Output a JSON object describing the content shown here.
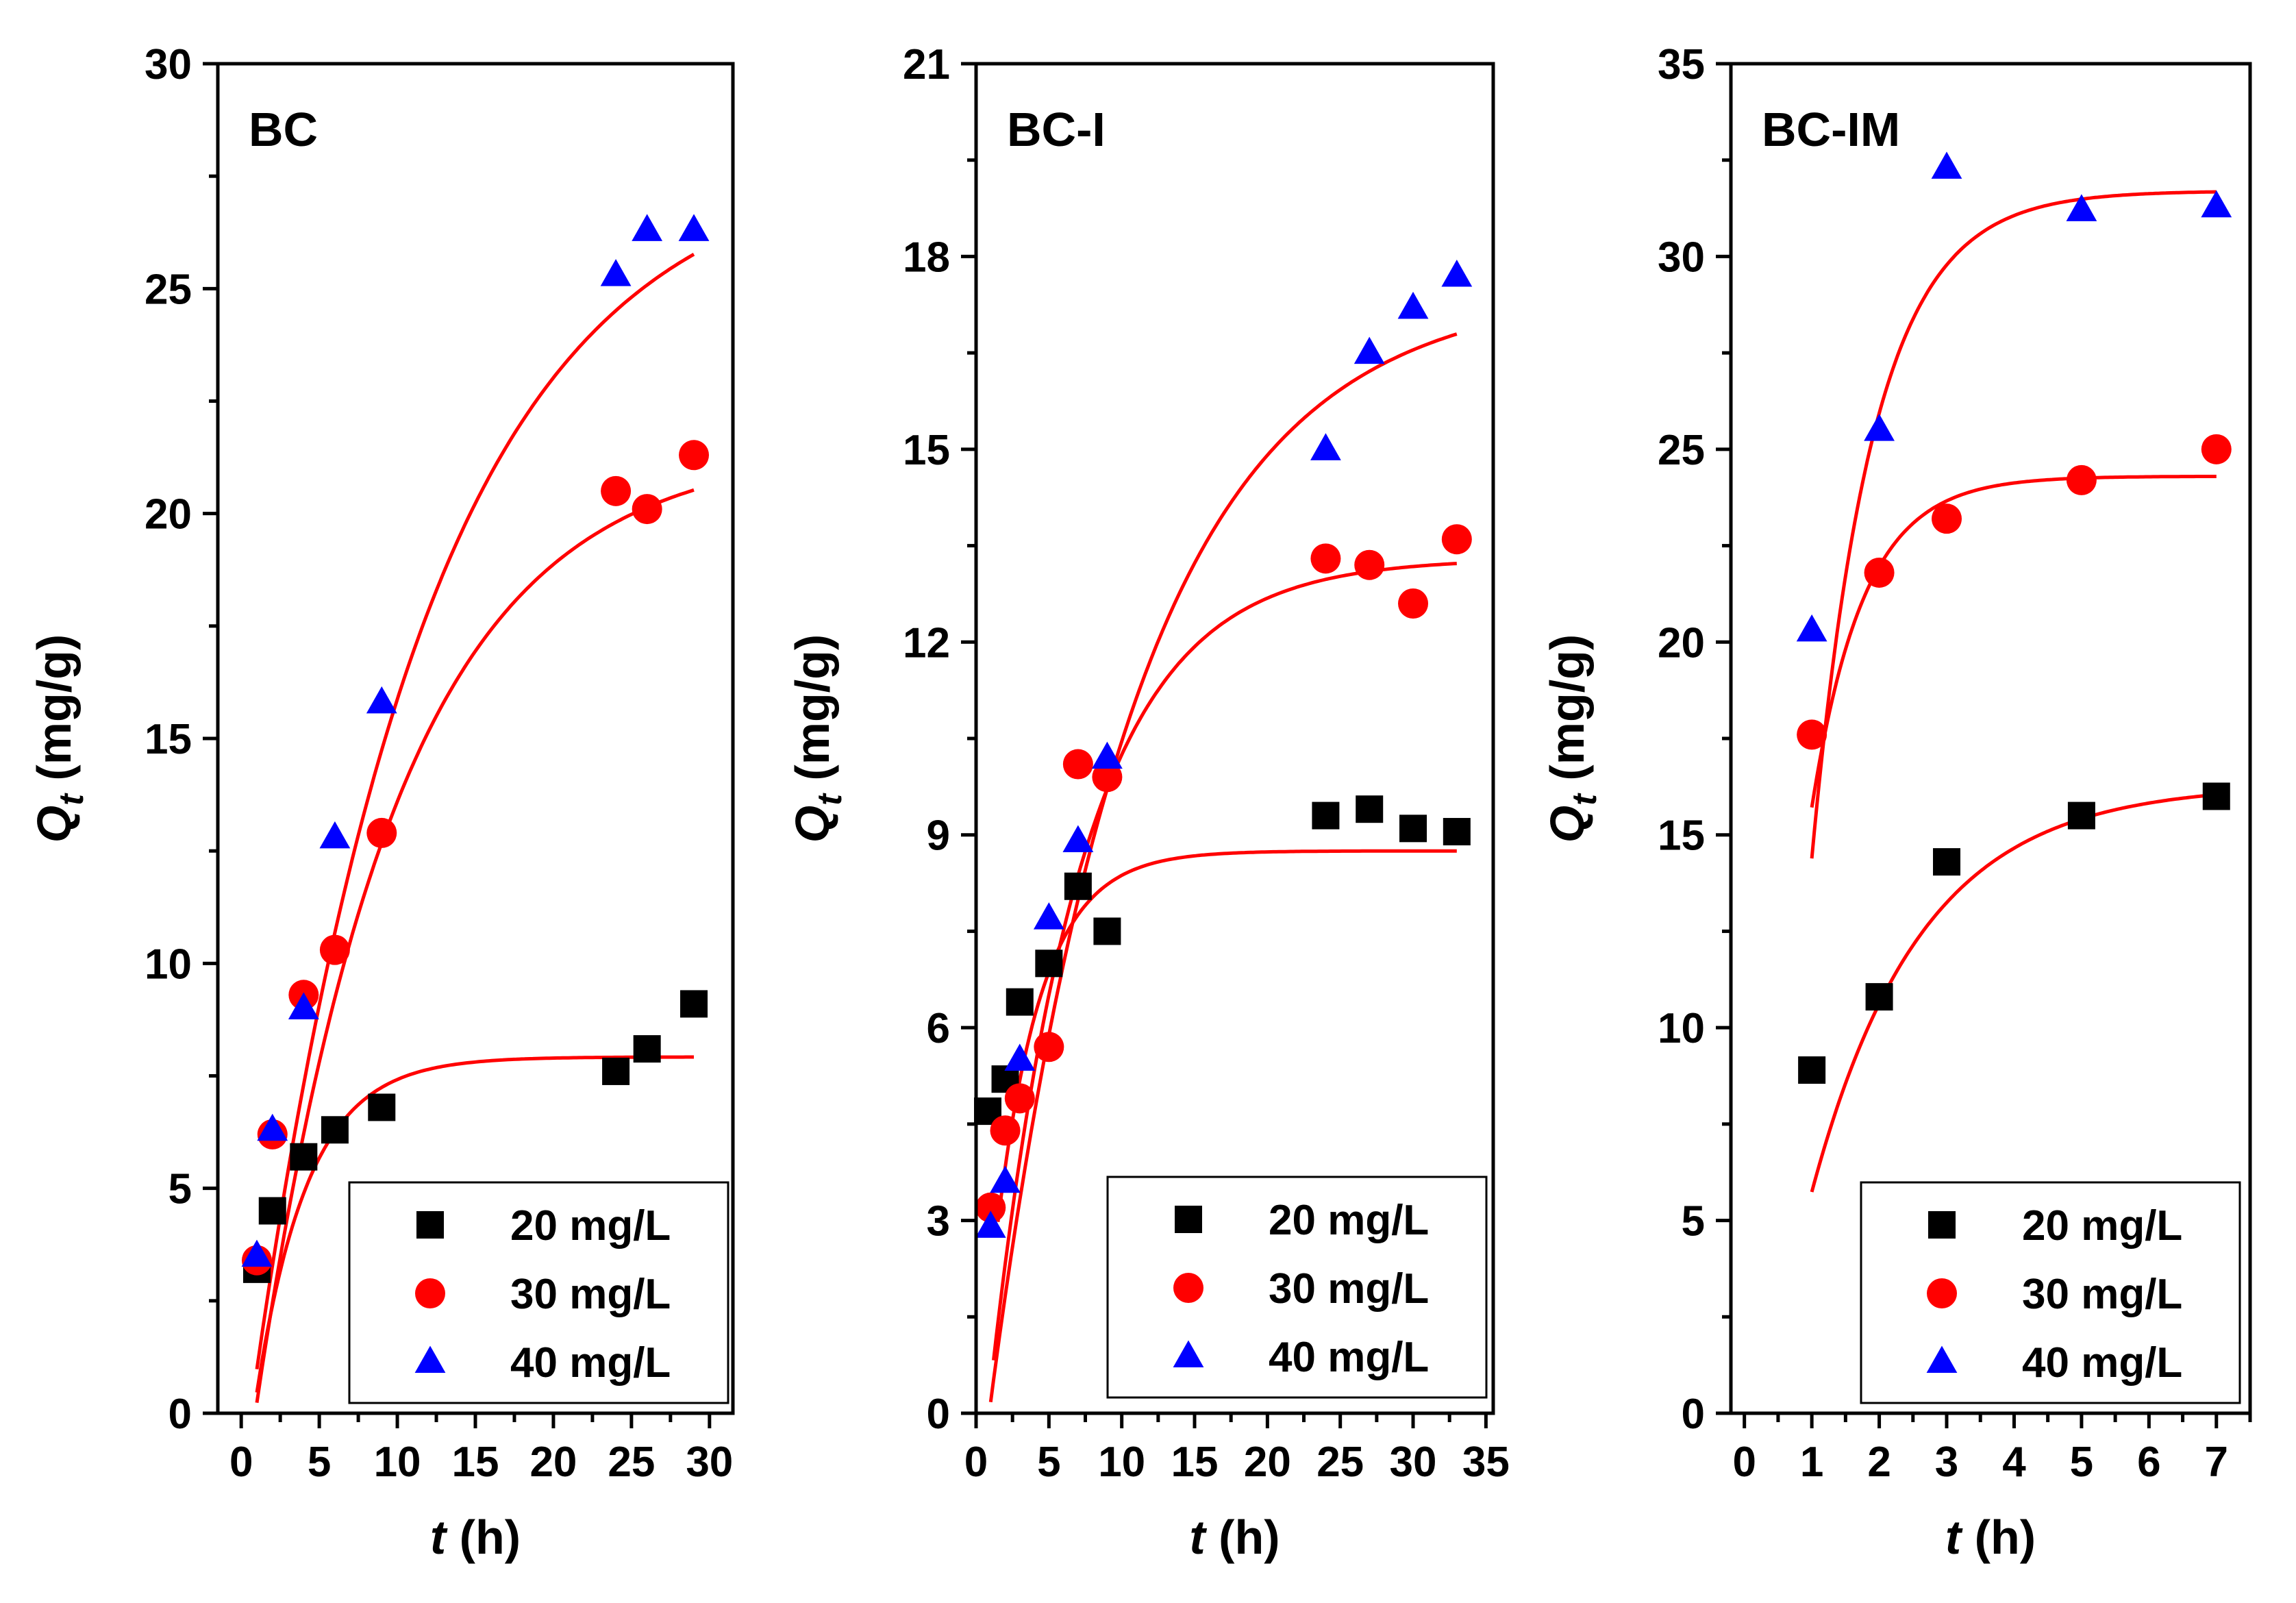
{
  "figure": {
    "legend_labels": [
      "20 mg/L",
      "30 mg/L",
      "40 mg/L"
    ]
  },
  "chart_data": [
    {
      "type": "scatter",
      "title": "BC",
      "xlabel_var": "t",
      "xlabel_unit": "(h)",
      "ylabel_var": "Q",
      "ylabel_sub": "t",
      "ylabel_unit": "(mg/g)",
      "xlim": [
        -1.5,
        31.5
      ],
      "ylim": [
        0,
        30
      ],
      "xticks": [
        0,
        5,
        10,
        15,
        20,
        25,
        30
      ],
      "yticks": [
        0,
        5,
        10,
        15,
        20,
        25,
        30
      ],
      "legend_position": "bottom-right",
      "series": [
        {
          "name": "20 mg/L",
          "marker": "square",
          "color": "#000000",
          "x": [
            1,
            2,
            4,
            6,
            9,
            24,
            26,
            29
          ],
          "y": [
            3.2,
            4.5,
            5.7,
            6.3,
            6.8,
            7.6,
            8.1,
            9.1
          ]
        },
        {
          "name": "30 mg/L",
          "marker": "circle",
          "color": "#ff0000",
          "x": [
            1,
            2,
            4,
            6,
            9,
            24,
            26,
            29
          ],
          "y": [
            3.4,
            6.2,
            9.3,
            10.3,
            12.9,
            20.5,
            20.1,
            21.3
          ]
        },
        {
          "name": "40 mg/L",
          "marker": "triangle",
          "color": "#0000ff",
          "x": [
            1,
            2,
            4,
            6,
            9,
            24,
            26,
            29
          ],
          "y": [
            3.5,
            6.3,
            9.0,
            12.8,
            15.8,
            25.3,
            26.3,
            26.3
          ]
        }
      ],
      "fits": [
        {
          "series": "20 mg/L",
          "color": "#ff0000",
          "qe": 7.92,
          "k": 0.3,
          "t0": 0.8,
          "x_start": 1,
          "x_end": 29
        },
        {
          "series": "30 mg/L",
          "color": "#ff0000",
          "qe": 21.5,
          "k": 0.11,
          "t0": 0.9,
          "x_start": 1,
          "x_end": 29
        },
        {
          "series": "40 mg/L",
          "color": "#ff0000",
          "qe": 28.0,
          "k": 0.089,
          "t0": 0.6,
          "x_start": 1,
          "x_end": 29
        }
      ]
    },
    {
      "type": "scatter",
      "title": "BC-I",
      "xlabel_var": "t",
      "xlabel_unit": "(h)",
      "ylabel_var": "Q",
      "ylabel_sub": "t",
      "ylabel_unit": "(mg/g)",
      "xlim": [
        0,
        35.5
      ],
      "ylim": [
        0,
        21
      ],
      "xticks": [
        0,
        5,
        10,
        15,
        20,
        25,
        30,
        35
      ],
      "yticks": [
        0,
        3,
        6,
        9,
        12,
        15,
        18,
        21
      ],
      "legend_position": "bottom-right",
      "series": [
        {
          "name": "20 mg/L",
          "marker": "square",
          "color": "#000000",
          "x": [
            0.8,
            2,
            3,
            5,
            7,
            9,
            24,
            27,
            30,
            33
          ],
          "y": [
            4.7,
            5.2,
            6.4,
            7.0,
            8.2,
            7.5,
            9.3,
            9.4,
            9.1,
            9.05
          ]
        },
        {
          "name": "30 mg/L",
          "marker": "circle",
          "color": "#ff0000",
          "x": [
            1,
            2,
            3,
            5,
            7,
            9,
            24,
            27,
            30,
            33
          ],
          "y": [
            3.2,
            4.4,
            4.9,
            5.7,
            10.1,
            9.9,
            13.3,
            13.2,
            12.6,
            13.6
          ]
        },
        {
          "name": "40 mg/L",
          "marker": "triangle",
          "color": "#0000ff",
          "x": [
            1,
            2,
            3,
            5,
            7,
            9,
            24,
            27,
            30,
            33
          ],
          "y": [
            2.9,
            3.6,
            5.5,
            7.7,
            8.9,
            10.2,
            15.0,
            16.5,
            17.2,
            17.7
          ]
        }
      ],
      "fits": [
        {
          "series": "20 mg/L",
          "color": "#ff0000",
          "qe": 8.75,
          "k": 0.32,
          "t0": 0.2,
          "x_start": 1.5,
          "x_end": 33
        },
        {
          "series": "30 mg/L",
          "color": "#ff0000",
          "qe": 13.3,
          "k": 0.16,
          "t0": 0.8,
          "x_start": 1.2,
          "x_end": 33
        },
        {
          "series": "40 mg/L",
          "color": "#ff0000",
          "qe": 17.5,
          "k": 0.1,
          "t0": 0.9,
          "x_start": 1.0,
          "x_end": 33
        }
      ]
    },
    {
      "type": "scatter",
      "title": "BC-IM",
      "xlabel_var": "t",
      "xlabel_unit": "(h)",
      "ylabel_var": "Q",
      "ylabel_sub": "t",
      "ylabel_unit": "(mg/g)",
      "xlim": [
        -0.2,
        7.5
      ],
      "ylim": [
        0,
        35
      ],
      "xticks": [
        0,
        1,
        2,
        3,
        4,
        5,
        6,
        7
      ],
      "yticks": [
        0,
        5,
        10,
        15,
        20,
        25,
        30,
        35
      ],
      "legend_position": "bottom-right",
      "series": [
        {
          "name": "20 mg/L",
          "marker": "square",
          "color": "#000000",
          "x": [
            1,
            2,
            3,
            5,
            7
          ],
          "y": [
            8.9,
            10.8,
            14.3,
            15.5,
            16.0
          ]
        },
        {
          "name": "30 mg/L",
          "marker": "circle",
          "color": "#ff0000",
          "x": [
            1,
            2,
            3,
            5,
            7
          ],
          "y": [
            17.6,
            21.8,
            23.2,
            24.2,
            25.0
          ]
        },
        {
          "name": "40 mg/L",
          "marker": "triangle",
          "color": "#0000ff",
          "x": [
            1,
            2,
            3,
            5,
            7
          ],
          "y": [
            20.3,
            25.5,
            32.3,
            31.2,
            31.3
          ]
        }
      ],
      "fits": [
        {
          "series": "20 mg/L",
          "color": "#ff0000",
          "qe": 16.3,
          "k": 0.62,
          "t0": 0.3,
          "x_start": 1,
          "x_end": 7
        },
        {
          "series": "30 mg/L",
          "color": "#ff0000",
          "qe": 24.3,
          "k": 1.3,
          "t0": 0.2,
          "x_start": 1,
          "x_end": 7
        },
        {
          "series": "40 mg/L",
          "color": "#ff0000",
          "qe": 31.7,
          "k": 1.1,
          "t0": 0.45,
          "x_start": 1,
          "x_end": 7
        }
      ]
    }
  ]
}
